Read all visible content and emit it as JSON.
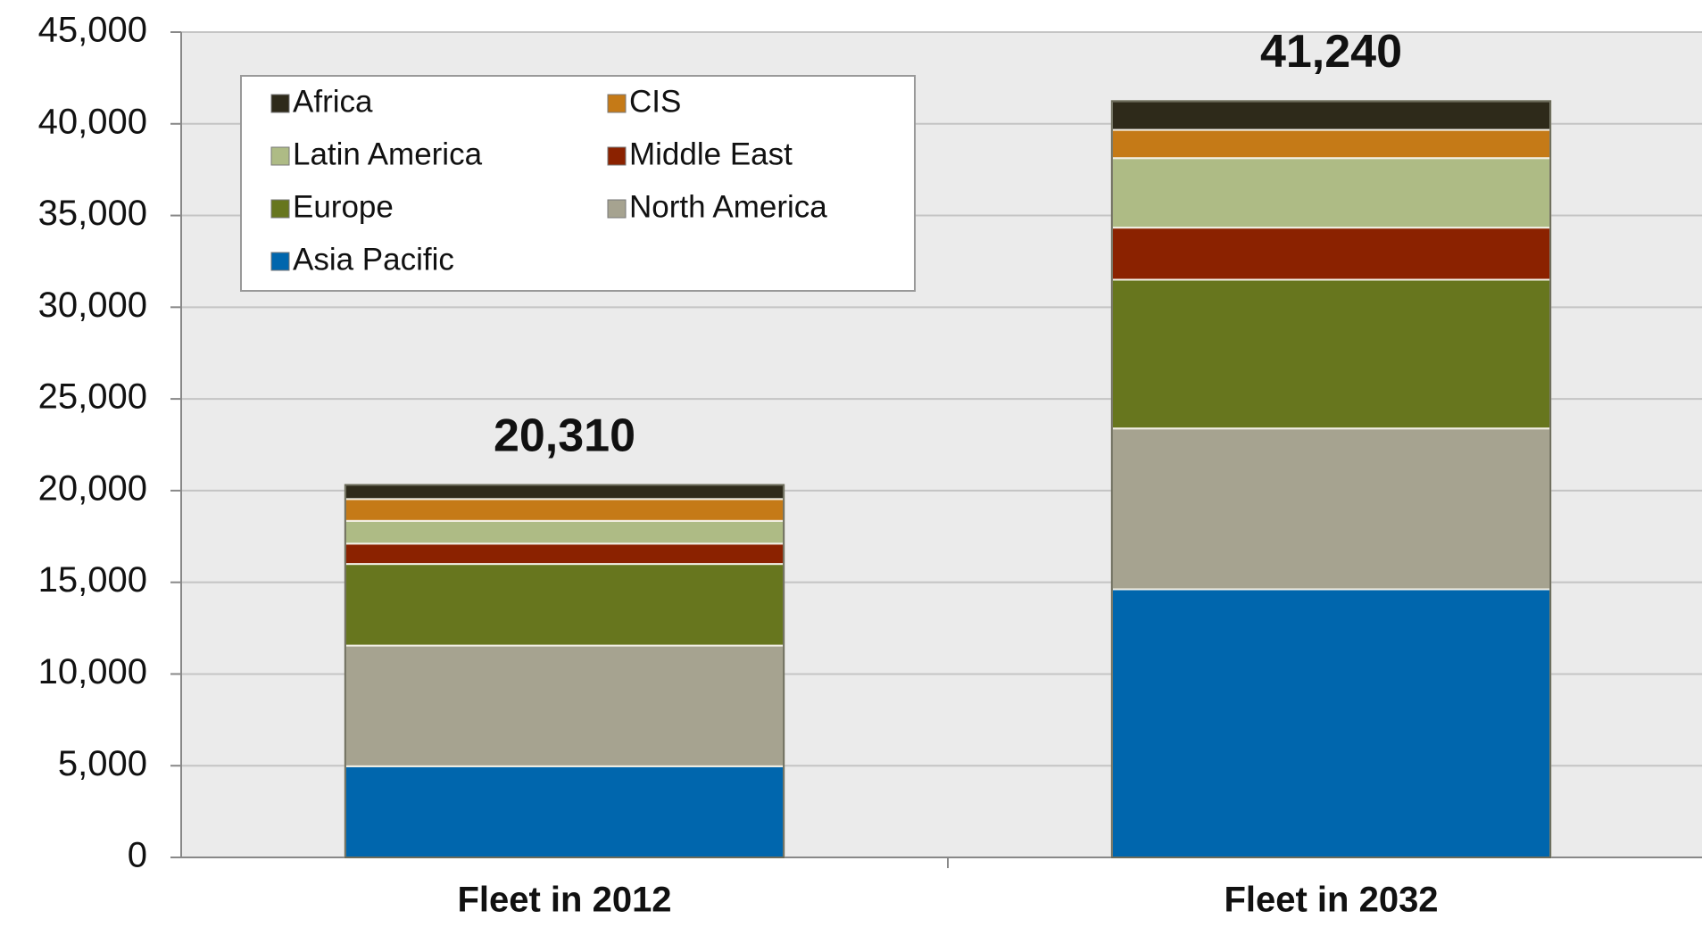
{
  "chart_data": {
    "type": "stacked_bar",
    "categories": [
      "Fleet in 2012",
      "Fleet in 2032"
    ],
    "series": [
      {
        "name": "Asia Pacific",
        "color": "#0066ad",
        "values": [
          4970,
          14620
        ]
      },
      {
        "name": "North America",
        "color": "#a6a390",
        "values": [
          6580,
          8770
        ]
      },
      {
        "name": "Europe",
        "color": "#67761e",
        "values": [
          4450,
          8110
        ]
      },
      {
        "name": "Middle East",
        "color": "#8b2200",
        "values": [
          1110,
          2840
        ]
      },
      {
        "name": "Latin America",
        "color": "#aebb85",
        "values": [
          1240,
          3790
        ]
      },
      {
        "name": "CIS",
        "color": "#c57a17",
        "values": [
          1190,
          1540
        ]
      },
      {
        "name": "Africa",
        "color": "#2e2a1a",
        "values": [
          770,
          1570
        ]
      }
    ],
    "totals": {
      "values": [
        20310,
        41240
      ],
      "value_labels": [
        "20,310",
        "41,240"
      ]
    },
    "ylim": [
      0,
      45000
    ],
    "yticks": [
      0,
      {
        "value": 5000,
        "label": "5,000"
      },
      {
        "value": 10000,
        "label": "10,000"
      },
      {
        "value": 15000,
        "label": "15,000"
      },
      {
        "value": 20000,
        "label": "20,000"
      },
      {
        "value": 25000,
        "label": "25,000"
      },
      {
        "value": 30000,
        "label": "30,000"
      },
      {
        "value": 35000,
        "label": "35,000"
      },
      {
        "value": 40000,
        "label": "40,000"
      },
      {
        "value": 45000,
        "label": "45,000"
      }
    ],
    "grid": true,
    "legend": "upper left"
  }
}
